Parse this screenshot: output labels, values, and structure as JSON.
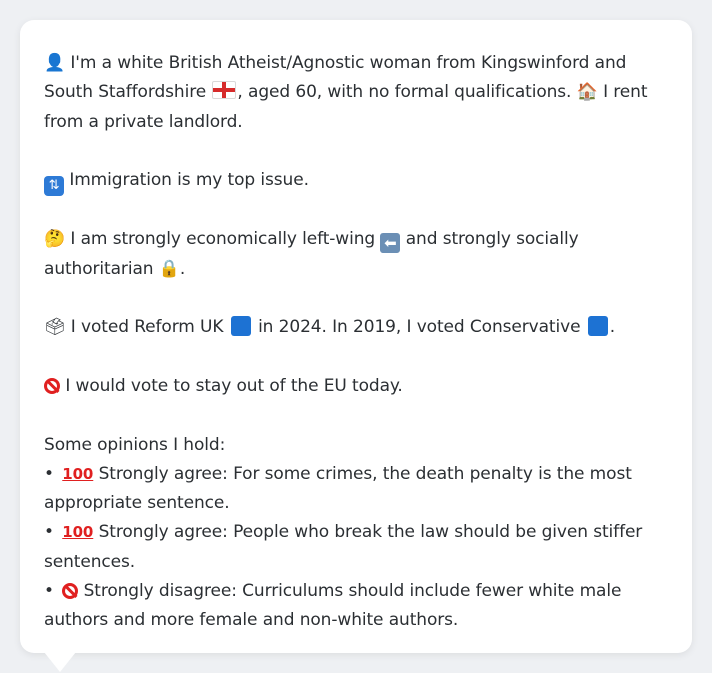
{
  "persona": {
    "p1_a": "I'm a white British Atheist/Agnostic woman from Kingswinford and South Staffordshire",
    "p1_b": ", aged 60, with no formal qualifications.",
    "p1_c": "I rent from a private landlord.",
    "p2": "Immigration is my top issue.",
    "p3_a": "I am strongly economically left-wing",
    "p3_b": "and strongly socially authoritarian",
    "p3_c": ".",
    "p4_a": "I voted Reform UK",
    "p4_b": "in 2024. In 2019, I voted Conservative",
    "p4_c": ".",
    "p5": "I would vote to stay out of the EU today.",
    "opinions_heading": "Some opinions I hold:",
    "opinions": [
      {
        "prefix": "Strongly agree:",
        "text": "For some crimes, the death penalty is the most appropriate sentence."
      },
      {
        "prefix": "Strongly agree:",
        "text": "People who break the law should be given stiffer sentences."
      },
      {
        "prefix": "Strongly disagree:",
        "text": "Curriculums should include fewer white male authors and more female and non-white authors."
      }
    ],
    "icons": {
      "person": "person-silhouette-icon",
      "flag": "england-flag-icon",
      "house": "house-icon",
      "immigration": "passport-control-icon",
      "thinking": "thinking-face-icon",
      "left_arrow": "left-arrow-icon",
      "lock": "lock-icon",
      "ballot": "ballot-box-icon",
      "blue_square": "blue-square-icon",
      "no_entry": "prohibited-icon",
      "hundred": "hundred-points-icon"
    },
    "colors": {
      "blue_square": "#1d72d3",
      "no_sign": "#e02020",
      "flag_cross": "#d62b2b",
      "text": "#2b2f33",
      "card_bg": "#ffffff",
      "page_bg": "#eef0f3"
    },
    "hundred_glyph": "100",
    "arrow_glyph": "⬅"
  }
}
